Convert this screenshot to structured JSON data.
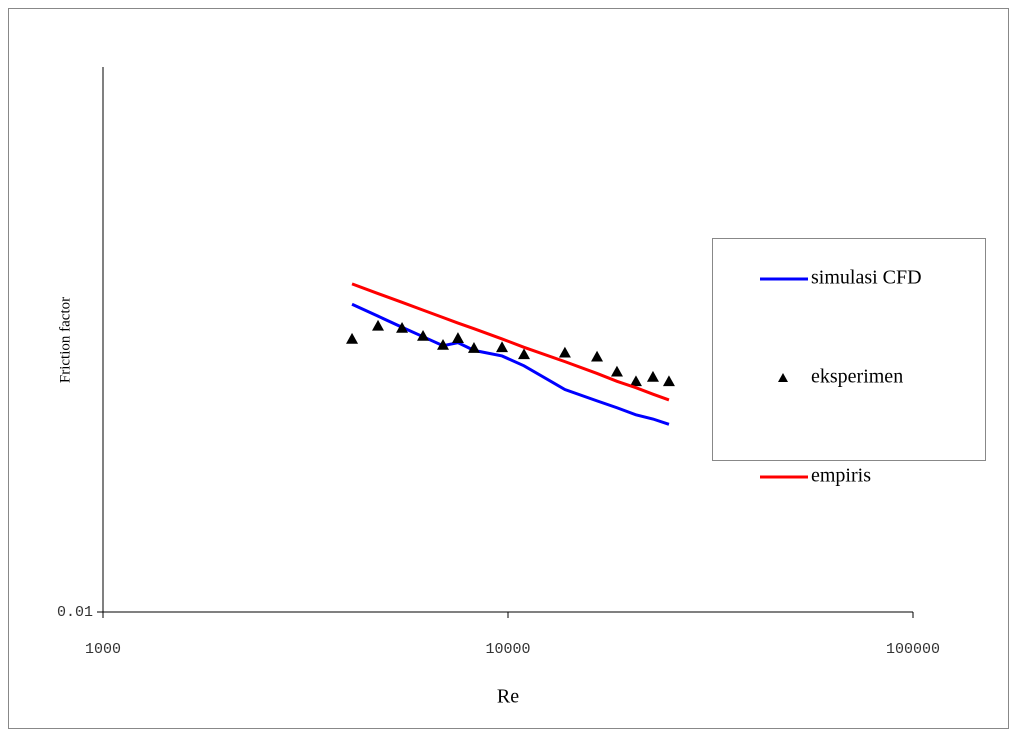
{
  "chart_data": {
    "type": "line",
    "x_label": "Re",
    "y_label": "Friction factor",
    "x_scale": "log",
    "y_scale": "log",
    "xlim": [
      1000,
      100000
    ],
    "xticks": [
      1000,
      10000,
      100000
    ],
    "ylim": [
      0.01,
      0.1
    ],
    "yticks": [
      0.01
    ],
    "legend": "right",
    "x": [
      4120,
      4776,
      5475,
      6169,
      6911,
      7524,
      8241,
      9666,
      10953,
      13820,
      16590,
      18580,
      20700,
      22800,
      24970
    ],
    "series": [
      {
        "name": "simulasi CFD",
        "color": "#0000ff",
        "style": "line",
        "values": [
          0.0367,
          0.0349,
          0.0333,
          0.032,
          0.0308,
          0.0312,
          0.0302,
          0.0295,
          0.0283,
          0.0256,
          0.0244,
          0.0237,
          0.023,
          0.0226,
          0.0221
        ]
      },
      {
        "name": "eksperimen",
        "color": "#000000",
        "style": "marker",
        "values": [
          0.0317,
          0.0335,
          0.0332,
          0.0321,
          0.0309,
          0.0318,
          0.0305,
          0.0306,
          0.0297,
          0.0299,
          0.0294,
          0.0276,
          0.0265,
          0.027,
          0.0265
        ]
      },
      {
        "name": "empiris",
        "color": "#ff0000",
        "style": "line",
        "values": [
          0.04,
          0.0384,
          0.037,
          0.0358,
          0.0347,
          0.0339,
          0.0331,
          0.0317,
          0.0306,
          0.0288,
          0.0274,
          0.0265,
          0.0258,
          0.0251,
          0.0245
        ]
      }
    ]
  }
}
